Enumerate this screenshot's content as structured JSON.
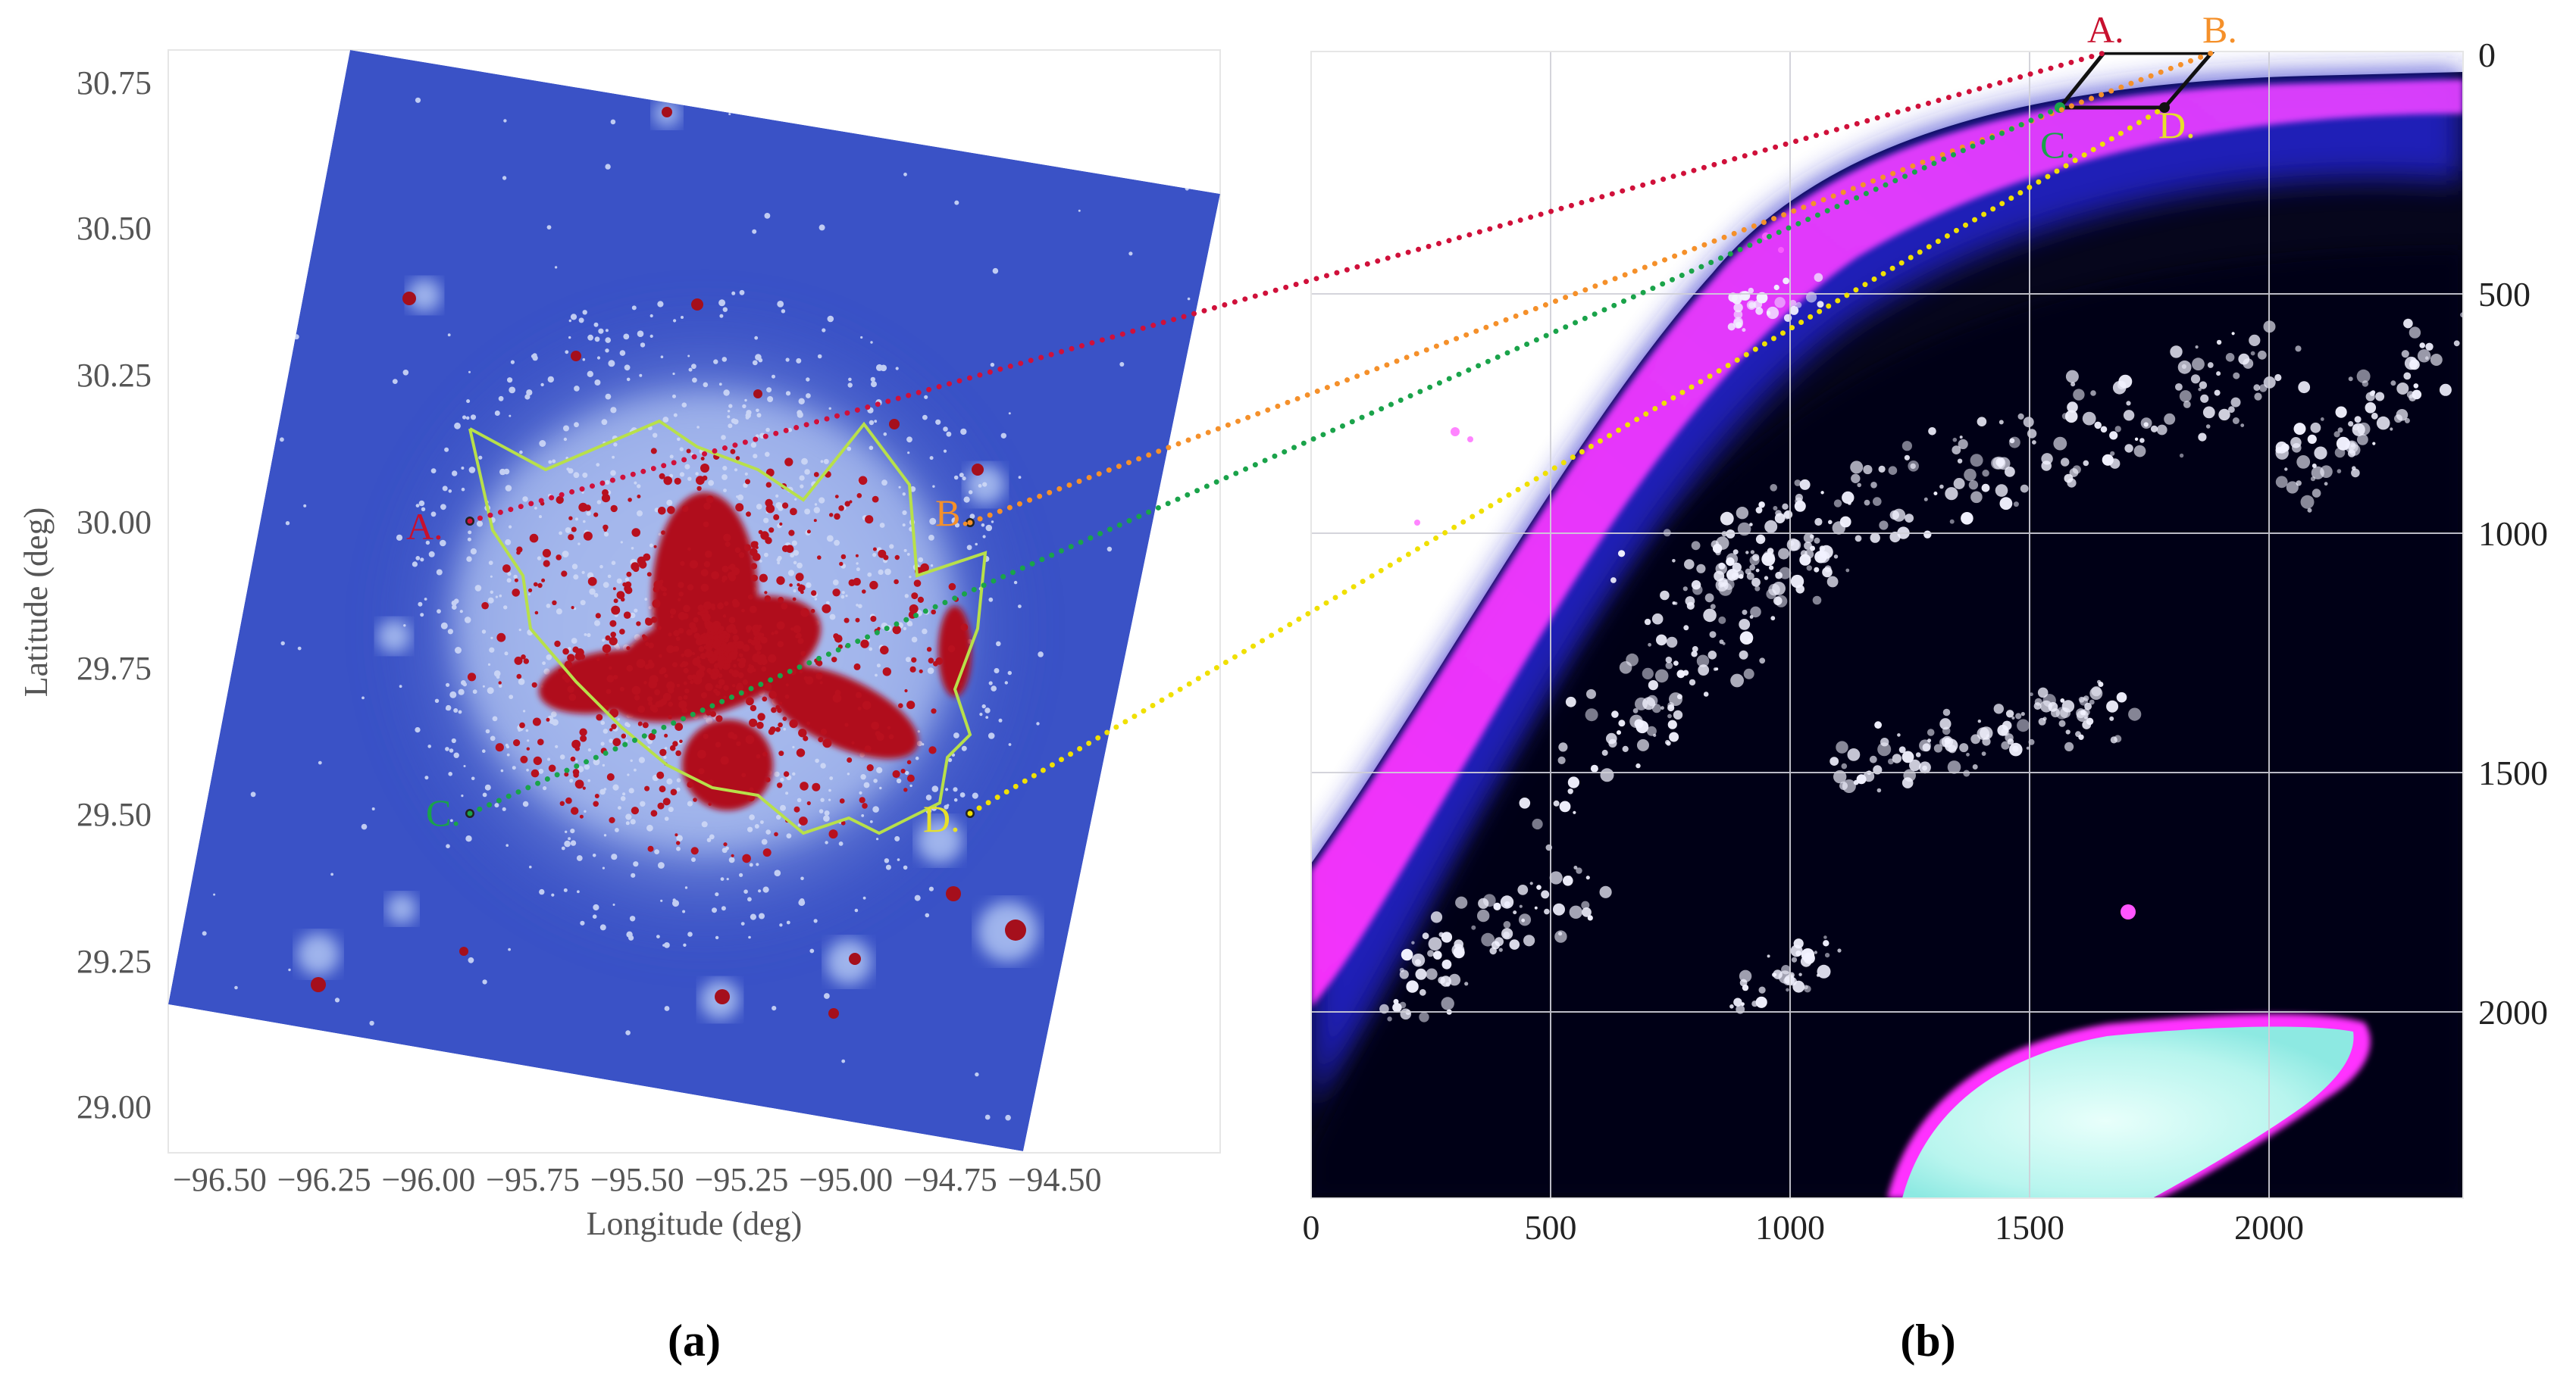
{
  "panel_a": {
    "caption": "(a)",
    "xlabel": "Longitude (deg)",
    "ylabel": "Latitude (deg)",
    "x_ticks": [
      "−96.50",
      "−96.25",
      "−96.00",
      "−95.75",
      "−95.50",
      "−95.25",
      "−95.00",
      "−94.75",
      "−94.50"
    ],
    "y_ticks": [
      "30.75",
      "30.50",
      "30.25",
      "30.00",
      "29.75",
      "29.50",
      "29.25",
      "29.00"
    ],
    "points": [
      {
        "label": "A.",
        "color": "#c8102e"
      },
      {
        "label": "B.",
        "color": "#f5902a"
      },
      {
        "label": "C.",
        "color": "#1aa34a"
      },
      {
        "label": "D.",
        "color": "#e6e02a"
      }
    ],
    "colors": {
      "background_map": "#3a52c6",
      "light": "#9fb4ec",
      "urban": "#b0101c",
      "boundary": "#b8e04a"
    }
  },
  "panel_b": {
    "caption": "(b)",
    "x_ticks": [
      "0",
      "500",
      "1000",
      "1500",
      "2000"
    ],
    "y_ticks": [
      "0",
      "500",
      "1000",
      "1500",
      "2000"
    ],
    "points": [
      {
        "label": "A.",
        "color": "#c8102e"
      },
      {
        "label": "B.",
        "color": "#f5902a"
      },
      {
        "label": "C.",
        "color": "#1aa34a"
      },
      {
        "label": "D.",
        "color": "#e6e02a"
      }
    ]
  }
}
